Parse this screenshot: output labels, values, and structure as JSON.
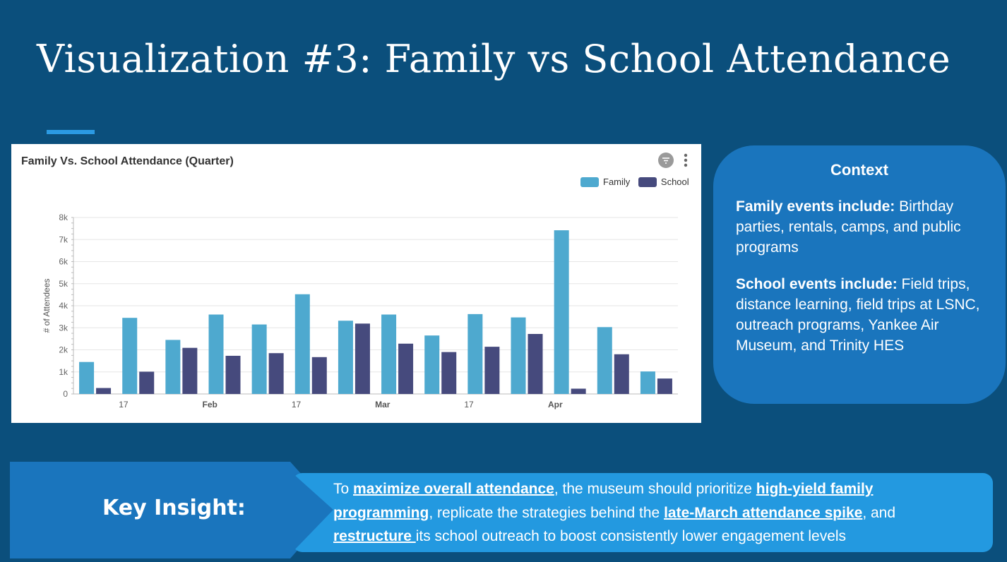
{
  "slide": {
    "title": "Visualization #3: Family vs School Attendance"
  },
  "colors": {
    "background": "#0b4f7c",
    "family": "#4ea9cf",
    "school": "#464a7d",
    "context_box": "#1a75bd",
    "insight_box": "#2399e0"
  },
  "chart_card": {
    "filter_icon": "filter-icon",
    "menu_icon": "more-vertical-icon"
  },
  "chart_data": {
    "type": "bar",
    "title": "Family Vs. School Attendance (Quarter)",
    "ylabel": "# of Attendees",
    "xlabel": "",
    "ylim": [
      0,
      8000
    ],
    "yticks": [
      "0",
      "1k",
      "2k",
      "3k",
      "4k",
      "5k",
      "6k",
      "7k",
      "8k"
    ],
    "grid": true,
    "legend_position": "top-right",
    "x_tick_labels": [
      {
        "label": "17",
        "index": 1
      },
      {
        "label": "Feb",
        "index": 3
      },
      {
        "label": "17",
        "index": 5
      },
      {
        "label": "Mar",
        "index": 7
      },
      {
        "label": "17",
        "index": 9
      },
      {
        "label": "Apr",
        "index": 11
      }
    ],
    "series": [
      {
        "name": "Family",
        "values": [
          1450,
          3450,
          2450,
          3600,
          3150,
          4520,
          3320,
          3600,
          2650,
          3620,
          3470,
          7420,
          3030,
          1020
        ]
      },
      {
        "name": "School",
        "values": [
          270,
          1010,
          2090,
          1730,
          1850,
          1670,
          3190,
          2280,
          1900,
          2140,
          2720,
          240,
          1800,
          700
        ]
      }
    ]
  },
  "context": {
    "title": "Context",
    "family_heading": "Family events include:",
    "family_text": " Birthday parties, rentals, camps, and public programs",
    "school_heading": "School events include:",
    "school_text": " Field trips, distance learning, field trips at  LSNC, outreach programs, Yankee Air Museum, and Trinity HES"
  },
  "insight": {
    "label": "Key Insight:",
    "t1": "To ",
    "u1": "maximize overall attendance",
    "t2": ", the museum should prioritize ",
    "u2": "high-yield family programming",
    "t3": ", replicate the strategies behind the ",
    "u3": "late-March attendance spike",
    "t4": ", and ",
    "u4": "restructure ",
    "t5": "its school outreach to boost consistently lower engagement levels"
  }
}
